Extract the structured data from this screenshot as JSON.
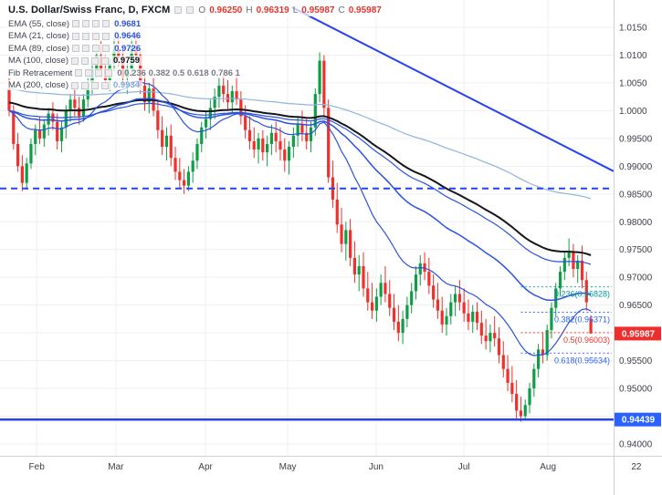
{
  "header": {
    "symbol_title": "U.S. Dollar/Swiss Franc, D, FXCM",
    "ohlc": {
      "o_label": "O",
      "o": "0.96250",
      "h_label": "H",
      "h": "0.96319",
      "l_label": "L",
      "l": "0.95987",
      "c_label": "C",
      "c": "0.95987"
    }
  },
  "indicators": [
    {
      "label": "EMA (55, close)",
      "value": "0.9681",
      "value_color": "#2a52e0"
    },
    {
      "label": "EMA (21, close)",
      "value": "0.9646",
      "value_color": "#2a52e0"
    },
    {
      "label": "EMA (89, close)",
      "value": "0.9726",
      "value_color": "#2a52e0"
    },
    {
      "label": "MA (100, close)",
      "value": "0.9759",
      "value_color": "#131722"
    },
    {
      "label": "Fib Retracement",
      "value": "0 0.236 0.382 0.5 0.618 0.786 1",
      "value_color": "#787b86"
    },
    {
      "label": "MA (200, close)",
      "value": "0.9934",
      "value_color": "#7fa7d9"
    }
  ],
  "axes": {
    "y_ticks": [
      {
        "label": "1.0150",
        "value": 1.015
      },
      {
        "label": "1.0100",
        "value": 1.01
      },
      {
        "label": "1.0050",
        "value": 1.005
      },
      {
        "label": "1.0000",
        "value": 1.0
      },
      {
        "label": "0.99500",
        "value": 0.995
      },
      {
        "label": "0.99000",
        "value": 0.99
      },
      {
        "label": "0.98500",
        "value": 0.985
      },
      {
        "label": "0.98000",
        "value": 0.98
      },
      {
        "label": "0.97500",
        "value": 0.975
      },
      {
        "label": "0.97000",
        "value": 0.97
      },
      {
        "label": "0.96500",
        "value": 0.965
      },
      {
        "label": "0.96000",
        "value": 0.96
      },
      {
        "label": "0.95500",
        "value": 0.955
      },
      {
        "label": "0.95000",
        "value": 0.95
      },
      {
        "label": "0.94500",
        "value": 0.945
      },
      {
        "label": "0.94000",
        "value": 0.94
      }
    ],
    "x_ticks": [
      {
        "label": "Feb",
        "index": 6.3
      },
      {
        "label": "Mar",
        "index": 24.4
      },
      {
        "label": "Apr",
        "index": 44.9
      },
      {
        "label": "May",
        "index": 63.7
      },
      {
        "label": "Jun",
        "index": 83.9
      },
      {
        "label": "Jul",
        "index": 104
      },
      {
        "label": "Aug",
        "index": 123.2
      },
      {
        "label": "22",
        "index": 143.4,
        "grid": false
      }
    ]
  },
  "drawings": {
    "trendline": {
      "from": {
        "i": 64.7,
        "p": 1.0186
      },
      "to": {
        "i": 138.2,
        "p": 0.9891
      },
      "color": "#2742f0"
    },
    "dashed_level": {
      "value": 0.986,
      "color": "#2742f0"
    },
    "support_level": {
      "value": 0.94439,
      "badge": "0.94439",
      "color": "#2742f0",
      "badge_color": "#2962ff"
    },
    "fib": {
      "start_index": 117,
      "levels": [
        {
          "label": "0.236(0.96828)",
          "value": 0.96828,
          "color": "#0098a0"
        },
        {
          "label": "0.382(0.96371)",
          "value": 0.96371,
          "color": "#2962ff"
        },
        {
          "label": "0.5(0.96003)",
          "value": 0.96003,
          "color": "#e8342c"
        },
        {
          "label": "0.618(0.95634)",
          "value": 0.95634,
          "color": "#2962ff"
        }
      ]
    }
  },
  "last_price": {
    "value": 0.95987,
    "badge": "0.95987",
    "badge_color": "#f02d2d"
  },
  "chart_data": {
    "type": "candlestick",
    "title": "U.S. Dollar/Swiss Franc, D, FXCM",
    "symbol": "USD/CHF",
    "timeframe": "D",
    "y_range": [
      0.9379,
      1.0199
    ],
    "x_labels": [
      "Feb",
      "Mar",
      "Apr",
      "May",
      "Jun",
      "Jul",
      "Aug"
    ],
    "up_color": "#0f9d46",
    "down_color": "#ef302c",
    "candles": [
      [
        1.004,
        1.006,
        0.999,
        1.0
      ],
      [
        1.0,
        1.001,
        0.993,
        0.994
      ],
      [
        0.994,
        0.996,
        0.989,
        0.99
      ],
      [
        0.99,
        0.992,
        0.9855,
        0.987
      ],
      [
        0.987,
        0.9915,
        0.9858,
        0.9905
      ],
      [
        0.9905,
        0.995,
        0.9895,
        0.994
      ],
      [
        0.994,
        0.9975,
        0.992,
        0.9965
      ],
      [
        0.9965,
        0.999,
        0.994,
        0.995
      ],
      [
        0.995,
        0.9985,
        0.9935,
        0.9975
      ],
      [
        0.9975,
        1.0005,
        0.9955,
        0.9995
      ],
      [
        0.9995,
        1.0015,
        0.9965,
        0.998
      ],
      [
        0.998,
        0.9995,
        0.993,
        0.9945
      ],
      [
        0.9945,
        0.998,
        0.9925,
        0.997
      ],
      [
        0.997,
        1.001,
        0.995,
        1.0
      ],
      [
        1.0,
        1.003,
        0.998,
        1.002
      ],
      [
        1.002,
        1.004,
        0.999,
        1.0005
      ],
      [
        1.0005,
        1.0025,
        0.9975,
        0.999
      ],
      [
        0.999,
        1.003,
        0.998,
        1.002
      ],
      [
        1.002,
        1.006,
        1.0005,
        1.005
      ],
      [
        1.005,
        1.009,
        1.003,
        1.0075
      ],
      [
        1.0075,
        1.012,
        1.006,
        1.01
      ],
      [
        1.01,
        1.0125,
        1.006,
        1.0075
      ],
      [
        1.0075,
        1.01,
        1.004,
        1.0055
      ],
      [
        1.0055,
        1.0095,
        1.0035,
        1.0085
      ],
      [
        1.0085,
        1.013,
        1.007,
        1.011
      ],
      [
        1.011,
        1.0135,
        1.008,
        1.0095
      ],
      [
        1.0095,
        1.0115,
        1.0045,
        1.006
      ],
      [
        1.006,
        1.009,
        1.003,
        1.0075
      ],
      [
        1.0075,
        1.013,
        1.006,
        1.0115
      ],
      [
        1.0115,
        1.014,
        1.009,
        1.01
      ],
      [
        1.01,
        1.011,
        1.003,
        1.0045
      ],
      [
        1.0045,
        1.007,
        1.0,
        1.0015
      ],
      [
        1.0015,
        1.005,
        0.9995,
        1.004
      ],
      [
        1.004,
        1.006,
        0.999,
        1.0
      ],
      [
        1.0,
        1.002,
        0.995,
        0.9965
      ],
      [
        0.9965,
        0.999,
        0.992,
        0.9935
      ],
      [
        0.9935,
        0.997,
        0.991,
        0.9955
      ],
      [
        0.9955,
        0.9975,
        0.99,
        0.9915
      ],
      [
        0.9915,
        0.9935,
        0.9875,
        0.989
      ],
      [
        0.989,
        0.9915,
        0.986,
        0.9875
      ],
      [
        0.9875,
        0.9895,
        0.985,
        0.9865
      ],
      [
        0.9865,
        0.99,
        0.9855,
        0.989
      ],
      [
        0.989,
        0.9925,
        0.987,
        0.991
      ],
      [
        0.991,
        0.995,
        0.9895,
        0.994
      ],
      [
        0.994,
        0.998,
        0.9925,
        0.997
      ],
      [
        0.997,
        1.0,
        0.995,
        0.9985
      ],
      [
        0.9985,
        1.002,
        0.9965,
        1.0005
      ],
      [
        1.0005,
        1.004,
        0.9985,
        1.0025
      ],
      [
        1.0025,
        1.006,
        1.0005,
        1.0045
      ],
      [
        1.0045,
        1.007,
        1.0015,
        1.003
      ],
      [
        1.003,
        1.0055,
        1.0,
        1.0015
      ],
      [
        1.0015,
        1.0045,
        0.9995,
        1.0035
      ],
      [
        1.0035,
        1.0065,
        1.001,
        1.002
      ],
      [
        1.002,
        1.0035,
        0.9975,
        0.999
      ],
      [
        0.999,
        1.001,
        0.995,
        0.9965
      ],
      [
        0.9965,
        0.999,
        0.993,
        0.9945
      ],
      [
        0.9945,
        0.997,
        0.9915,
        0.993
      ],
      [
        0.993,
        0.996,
        0.9905,
        0.995
      ],
      [
        0.995,
        0.9965,
        0.991,
        0.9925
      ],
      [
        0.9925,
        0.9955,
        0.99,
        0.994
      ],
      [
        0.994,
        0.9975,
        0.992,
        0.996
      ],
      [
        0.996,
        0.998,
        0.9925,
        0.9945
      ],
      [
        0.9945,
        0.997,
        0.991,
        0.993
      ],
      [
        0.993,
        0.995,
        0.989,
        0.991
      ],
      [
        0.991,
        0.9945,
        0.9885,
        0.9935
      ],
      [
        0.9935,
        0.997,
        0.9915,
        0.9955
      ],
      [
        0.9955,
        0.999,
        0.9935,
        0.9975
      ],
      [
        0.9975,
        1.0,
        0.9945,
        0.996
      ],
      [
        0.996,
        0.9985,
        0.993,
        0.9945
      ],
      [
        0.9945,
        0.998,
        0.9925,
        0.997
      ],
      [
        0.997,
        1.004,
        0.9955,
        1.003
      ],
      [
        1.003,
        1.0105,
        1.0015,
        1.009
      ],
      [
        1.009,
        1.01,
        0.999,
        1.0005
      ],
      [
        1.0005,
        1.002,
        0.987,
        0.988
      ],
      [
        0.988,
        0.991,
        0.9825,
        0.984
      ],
      [
        0.984,
        0.987,
        0.978,
        0.9795
      ],
      [
        0.9795,
        0.9825,
        0.9745,
        0.976
      ],
      [
        0.976,
        0.98,
        0.973,
        0.9785
      ],
      [
        0.9785,
        0.9805,
        0.972,
        0.9735
      ],
      [
        0.9735,
        0.9765,
        0.969,
        0.9705
      ],
      [
        0.9705,
        0.974,
        0.9675,
        0.972
      ],
      [
        0.972,
        0.9745,
        0.9665,
        0.968
      ],
      [
        0.968,
        0.971,
        0.964,
        0.9655
      ],
      [
        0.9655,
        0.969,
        0.9625,
        0.964
      ],
      [
        0.964,
        0.968,
        0.962,
        0.9665
      ],
      [
        0.9665,
        0.9705,
        0.965,
        0.969
      ],
      [
        0.969,
        0.972,
        0.9655,
        0.967
      ],
      [
        0.967,
        0.9695,
        0.963,
        0.9645
      ],
      [
        0.9645,
        0.967,
        0.9605,
        0.962
      ],
      [
        0.962,
        0.965,
        0.9585,
        0.96
      ],
      [
        0.96,
        0.964,
        0.958,
        0.9625
      ],
      [
        0.9625,
        0.9665,
        0.961,
        0.965
      ],
      [
        0.965,
        0.969,
        0.9635,
        0.9675
      ],
      [
        0.9675,
        0.972,
        0.966,
        0.9705
      ],
      [
        0.9705,
        0.974,
        0.9685,
        0.9725
      ],
      [
        0.9725,
        0.9745,
        0.9695,
        0.971
      ],
      [
        0.971,
        0.9735,
        0.967,
        0.9685
      ],
      [
        0.9685,
        0.9705,
        0.9645,
        0.966
      ],
      [
        0.966,
        0.969,
        0.9625,
        0.964
      ],
      [
        0.964,
        0.9665,
        0.96,
        0.9615
      ],
      [
        0.9615,
        0.9645,
        0.9595,
        0.963
      ],
      [
        0.963,
        0.967,
        0.9615,
        0.9655
      ],
      [
        0.9655,
        0.9685,
        0.963,
        0.967
      ],
      [
        0.967,
        0.9695,
        0.964,
        0.9655
      ],
      [
        0.9655,
        0.968,
        0.962,
        0.9635
      ],
      [
        0.9635,
        0.966,
        0.9605,
        0.962
      ],
      [
        0.962,
        0.965,
        0.96,
        0.9638
      ],
      [
        0.9638,
        0.9655,
        0.9605,
        0.9618
      ],
      [
        0.9618,
        0.964,
        0.958,
        0.9595
      ],
      [
        0.9595,
        0.9625,
        0.957,
        0.9585
      ],
      [
        0.9585,
        0.9615,
        0.9565,
        0.96
      ],
      [
        0.96,
        0.963,
        0.9575,
        0.959
      ],
      [
        0.959,
        0.961,
        0.9545,
        0.956
      ],
      [
        0.956,
        0.9585,
        0.952,
        0.9535
      ],
      [
        0.9535,
        0.956,
        0.9495,
        0.951
      ],
      [
        0.951,
        0.954,
        0.9475,
        0.949
      ],
      [
        0.949,
        0.9515,
        0.9445,
        0.946
      ],
      [
        0.946,
        0.9485,
        0.944,
        0.945
      ],
      [
        0.945,
        0.948,
        0.9444,
        0.947
      ],
      [
        0.947,
        0.951,
        0.9455,
        0.95
      ],
      [
        0.95,
        0.9545,
        0.9485,
        0.9535
      ],
      [
        0.9535,
        0.958,
        0.952,
        0.957
      ],
      [
        0.957,
        0.96,
        0.9545,
        0.956
      ],
      [
        0.956,
        0.9615,
        0.955,
        0.9605
      ],
      [
        0.9605,
        0.9655,
        0.959,
        0.9645
      ],
      [
        0.9645,
        0.969,
        0.963,
        0.968
      ],
      [
        0.968,
        0.972,
        0.9665,
        0.971
      ],
      [
        0.971,
        0.9745,
        0.9695,
        0.9735
      ],
      [
        0.9735,
        0.977,
        0.972,
        0.9745
      ],
      [
        0.9745,
        0.976,
        0.97,
        0.9715
      ],
      [
        0.9715,
        0.974,
        0.969,
        0.973
      ],
      [
        0.973,
        0.9757,
        0.968,
        0.9695
      ],
      [
        0.9695,
        0.971,
        0.964,
        0.9655
      ],
      [
        0.9625,
        0.96319,
        0.95987,
        0.95987
      ]
    ],
    "overlays": [
      {
        "name": "MA 200",
        "period": 200,
        "seed": 1.004,
        "color": "#8fb4dd",
        "width": 1.2
      },
      {
        "name": "MA 100",
        "period": 100,
        "seed": 1.0015,
        "color": "#15171c",
        "width": 2
      },
      {
        "name": "EMA 89",
        "period": 89,
        "color": "#2a52e0",
        "width": 1.2
      },
      {
        "name": "EMA 55",
        "period": 55,
        "color": "#2a52e0",
        "width": 1.5
      },
      {
        "name": "EMA 21",
        "period": 21,
        "color": "#2a52e0",
        "width": 1.2
      }
    ]
  }
}
